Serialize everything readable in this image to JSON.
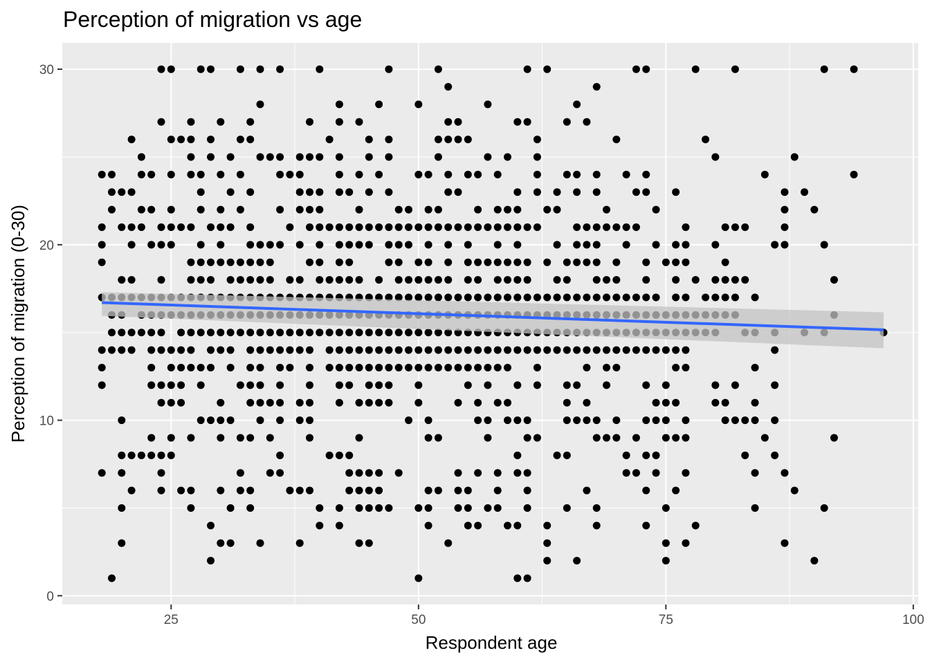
{
  "chart_data": {
    "type": "scatter",
    "title": "Perception of migration vs age",
    "xlabel": "Respondent age",
    "ylabel": "Perception of migration (0-30)",
    "xlim": [
      14,
      100.5
    ],
    "ylim": [
      -0.5,
      31.5
    ],
    "x_ticks": [
      25,
      50,
      75,
      100
    ],
    "y_ticks": [
      0,
      10,
      20,
      30
    ],
    "x_tick_labels": [
      "25",
      "50",
      "75",
      "100"
    ],
    "y_tick_labels": [
      "0",
      "10",
      "20",
      "30"
    ],
    "grid": true,
    "legend": "none",
    "colors": {
      "panel": "#ebebeb",
      "grid": "#ffffff",
      "points": "#000000",
      "trend": "#3366ff",
      "band": "#c3c3c3"
    },
    "series": [
      {
        "type": "scatter",
        "rows": [
          {
            "y": 30,
            "x": [
              24,
              25,
              28,
              29,
              32,
              34,
              36,
              40,
              47,
              52,
              61,
              63,
              72,
              73,
              78,
              82,
              91,
              94
            ]
          },
          {
            "y": 29,
            "x": [
              53,
              68
            ]
          },
          {
            "y": 28,
            "x": [
              34,
              42,
              46,
              50,
              57,
              66
            ]
          },
          {
            "y": 27,
            "x": [
              24,
              27,
              30,
              33,
              39,
              42,
              44,
              53,
              54,
              60,
              61,
              65,
              67
            ]
          },
          {
            "y": 26,
            "x": [
              21,
              25,
              26,
              27,
              29,
              32,
              33,
              41,
              45,
              47,
              52,
              53,
              54,
              55,
              62,
              70,
              79
            ]
          },
          {
            "y": 25,
            "x": [
              22,
              27,
              29,
              31,
              34,
              35,
              36,
              38,
              39,
              40,
              42,
              45,
              47,
              52,
              57,
              59,
              62,
              80,
              88
            ]
          },
          {
            "y": 24,
            "x": [
              18,
              19,
              22,
              23,
              25,
              27,
              28,
              30,
              32,
              36,
              37,
              38,
              42,
              44,
              46,
              50,
              51,
              53,
              55,
              56,
              58,
              62,
              65,
              66,
              68,
              71,
              73,
              85,
              94
            ]
          },
          {
            "y": 23,
            "x": [
              19,
              20,
              21,
              28,
              31,
              33,
              38,
              39,
              40,
              42,
              43,
              45,
              47,
              53,
              54,
              60,
              62,
              64,
              66,
              68,
              72,
              73,
              76,
              87,
              89
            ]
          },
          {
            "y": 22,
            "x": [
              19,
              22,
              23,
              25,
              28,
              30,
              32,
              36,
              38,
              39,
              40,
              44,
              48,
              49,
              51,
              52,
              56,
              58,
              59,
              60,
              63,
              64,
              69,
              74,
              87,
              90
            ]
          },
          {
            "y": 21,
            "x": [
              18,
              20,
              21,
              22,
              24,
              25,
              26,
              27,
              29,
              30,
              31,
              33,
              37,
              39,
              40,
              41,
              42,
              43,
              44,
              45,
              46,
              47,
              48,
              49,
              50,
              51,
              52,
              53,
              54,
              55,
              56,
              57,
              58,
              59,
              60,
              61,
              62,
              66,
              67,
              68,
              69,
              70,
              71,
              72,
              77,
              81,
              82,
              83,
              87
            ]
          },
          {
            "y": 20,
            "x": [
              18,
              21,
              23,
              24,
              25,
              28,
              30,
              33,
              34,
              35,
              36,
              38,
              40,
              42,
              43,
              44,
              45,
              47,
              48,
              49,
              51,
              53,
              55,
              58,
              60,
              64,
              66,
              67,
              68,
              71,
              74,
              76,
              77,
              80,
              86,
              87,
              91
            ]
          },
          {
            "y": 19,
            "x": [
              18,
              27,
              28,
              29,
              30,
              31,
              32,
              33,
              34,
              35,
              39,
              40,
              42,
              43,
              47,
              48,
              50,
              51,
              53,
              55,
              56,
              57,
              58,
              59,
              60,
              61,
              63,
              65,
              66,
              67,
              68,
              70,
              73,
              75,
              76,
              77,
              81
            ]
          },
          {
            "y": 18,
            "x": [
              20,
              21,
              24,
              27,
              28,
              29,
              31,
              32,
              33,
              34,
              35,
              37,
              38,
              40,
              41,
              42,
              43,
              44,
              46,
              48,
              49,
              50,
              51,
              52,
              53,
              55,
              56,
              58,
              59,
              60,
              61,
              64,
              65,
              68,
              69,
              70,
              73,
              76,
              78,
              80,
              81,
              82,
              83,
              92
            ]
          },
          {
            "y": 17,
            "x": [
              18,
              19,
              20,
              21,
              22,
              23,
              24,
              25,
              26,
              27,
              28,
              29,
              30,
              31,
              32,
              33,
              34,
              35,
              36,
              37,
              38,
              39,
              40,
              41,
              42,
              43,
              44,
              45,
              46,
              47,
              48,
              49,
              50,
              51,
              52,
              53,
              54,
              55,
              56,
              57,
              58,
              59,
              60,
              61,
              62,
              63,
              64,
              65,
              66,
              67,
              68,
              69,
              70,
              71,
              72,
              73,
              74,
              76,
              77,
              79,
              80,
              81,
              82,
              84
            ]
          },
          {
            "y": 16,
            "x": [
              19,
              20,
              22,
              23,
              24,
              25,
              26,
              27,
              28,
              29,
              30,
              31,
              32,
              33,
              34,
              35,
              36,
              37,
              38,
              39,
              40,
              41,
              42,
              43,
              44,
              45,
              46,
              47,
              48,
              49,
              50,
              51,
              52,
              53,
              54,
              55,
              56,
              57,
              58,
              59,
              60,
              61,
              62,
              63,
              64,
              65,
              66,
              67,
              68,
              69,
              70,
              71,
              72,
              73,
              74,
              75,
              76,
              77,
              78,
              79,
              80,
              81,
              82,
              92
            ]
          },
          {
            "y": 15,
            "x": [
              19,
              20,
              21,
              22,
              23,
              24,
              26,
              27,
              28,
              29,
              30,
              31,
              32,
              33,
              34,
              35,
              36,
              37,
              38,
              39,
              40,
              41,
              42,
              43,
              44,
              45,
              46,
              47,
              48,
              49,
              50,
              51,
              52,
              53,
              54,
              55,
              56,
              57,
              58,
              59,
              60,
              61,
              62,
              63,
              64,
              65,
              66,
              67,
              68,
              69,
              70,
              71,
              72,
              73,
              74,
              75,
              76,
              77,
              78,
              79,
              80,
              83,
              84,
              86,
              89,
              91,
              97
            ]
          },
          {
            "y": 14,
            "x": [
              18,
              19,
              20,
              21,
              23,
              24,
              25,
              26,
              27,
              29,
              30,
              31,
              33,
              34,
              35,
              36,
              37,
              38,
              39,
              41,
              42,
              43,
              44,
              45,
              46,
              47,
              48,
              49,
              50,
              51,
              52,
              53,
              54,
              55,
              56,
              57,
              58,
              59,
              60,
              61,
              62,
              63,
              64,
              65,
              66,
              67,
              68,
              69,
              70,
              71,
              72,
              73,
              74,
              75,
              76,
              77,
              86
            ]
          },
          {
            "y": 13,
            "x": [
              18,
              23,
              25,
              26,
              27,
              28,
              29,
              31,
              33,
              34,
              36,
              37,
              39,
              41,
              42,
              43,
              44,
              45,
              46,
              47,
              48,
              49,
              50,
              51,
              52,
              53,
              54,
              55,
              56,
              57,
              58,
              59,
              62,
              67,
              69,
              70,
              76,
              77,
              84
            ]
          },
          {
            "y": 12,
            "x": [
              18,
              23,
              24,
              25,
              26,
              28,
              32,
              33,
              34,
              36,
              39,
              42,
              43,
              45,
              46,
              47,
              50,
              55,
              57,
              60,
              62,
              65,
              66,
              69,
              73,
              75,
              80,
              82,
              86
            ]
          },
          {
            "y": 11,
            "x": [
              24,
              25,
              26,
              30,
              33,
              34,
              35,
              36,
              38,
              39,
              42,
              44,
              45,
              46,
              47,
              50,
              54,
              56,
              58,
              59,
              65,
              67,
              74,
              75,
              76,
              80,
              81,
              84
            ]
          },
          {
            "y": 10,
            "x": [
              20,
              28,
              29,
              30,
              31,
              34,
              36,
              38,
              39,
              49,
              51,
              56,
              57,
              59,
              60,
              61,
              65,
              66,
              67,
              68,
              70,
              73,
              74,
              75,
              77,
              81,
              82,
              83,
              84,
              86
            ]
          },
          {
            "y": 9,
            "x": [
              23,
              25,
              27,
              30,
              32,
              33,
              35,
              39,
              44,
              51,
              52,
              57,
              61,
              62,
              68,
              69,
              70,
              72,
              75,
              76,
              77,
              85,
              92
            ]
          },
          {
            "y": 8,
            "x": [
              20,
              21,
              22,
              23,
              24,
              25,
              36,
              41,
              42,
              43,
              60,
              64,
              65,
              71,
              73,
              74,
              83,
              86
            ]
          },
          {
            "y": 7,
            "x": [
              18,
              20,
              24,
              32,
              35,
              36,
              43,
              44,
              45,
              46,
              48,
              54,
              56,
              58,
              60,
              61,
              71,
              72,
              74,
              77,
              84,
              87
            ]
          },
          {
            "y": 6,
            "x": [
              21,
              24,
              26,
              27,
              30,
              32,
              33,
              37,
              38,
              39,
              43,
              44,
              45,
              46,
              51,
              52,
              54,
              55,
              58,
              61,
              67,
              73,
              76,
              88
            ]
          },
          {
            "y": 5,
            "x": [
              20,
              27,
              31,
              33,
              40,
              42,
              44,
              45,
              46,
              47,
              50,
              51,
              54,
              55,
              57,
              58,
              61,
              65,
              68,
              75,
              84,
              91
            ]
          },
          {
            "y": 4,
            "x": [
              29,
              40,
              42,
              51,
              55,
              56,
              59,
              60,
              63,
              68,
              73,
              78
            ]
          },
          {
            "y": 3,
            "x": [
              20,
              30,
              31,
              34,
              38,
              44,
              45,
              53,
              63,
              75,
              77,
              87
            ]
          },
          {
            "y": 2,
            "x": [
              29,
              63,
              66,
              75,
              90
            ]
          },
          {
            "y": 1,
            "x": [
              19,
              50,
              60,
              61
            ]
          }
        ]
      },
      {
        "type": "line",
        "method": "linear regression",
        "x": [
          18,
          97
        ],
        "y": [
          16.7,
          15.15
        ],
        "ci_upper": [
          17.3,
          16.15
        ],
        "ci_lower": [
          15.95,
          14.1
        ]
      }
    ]
  }
}
